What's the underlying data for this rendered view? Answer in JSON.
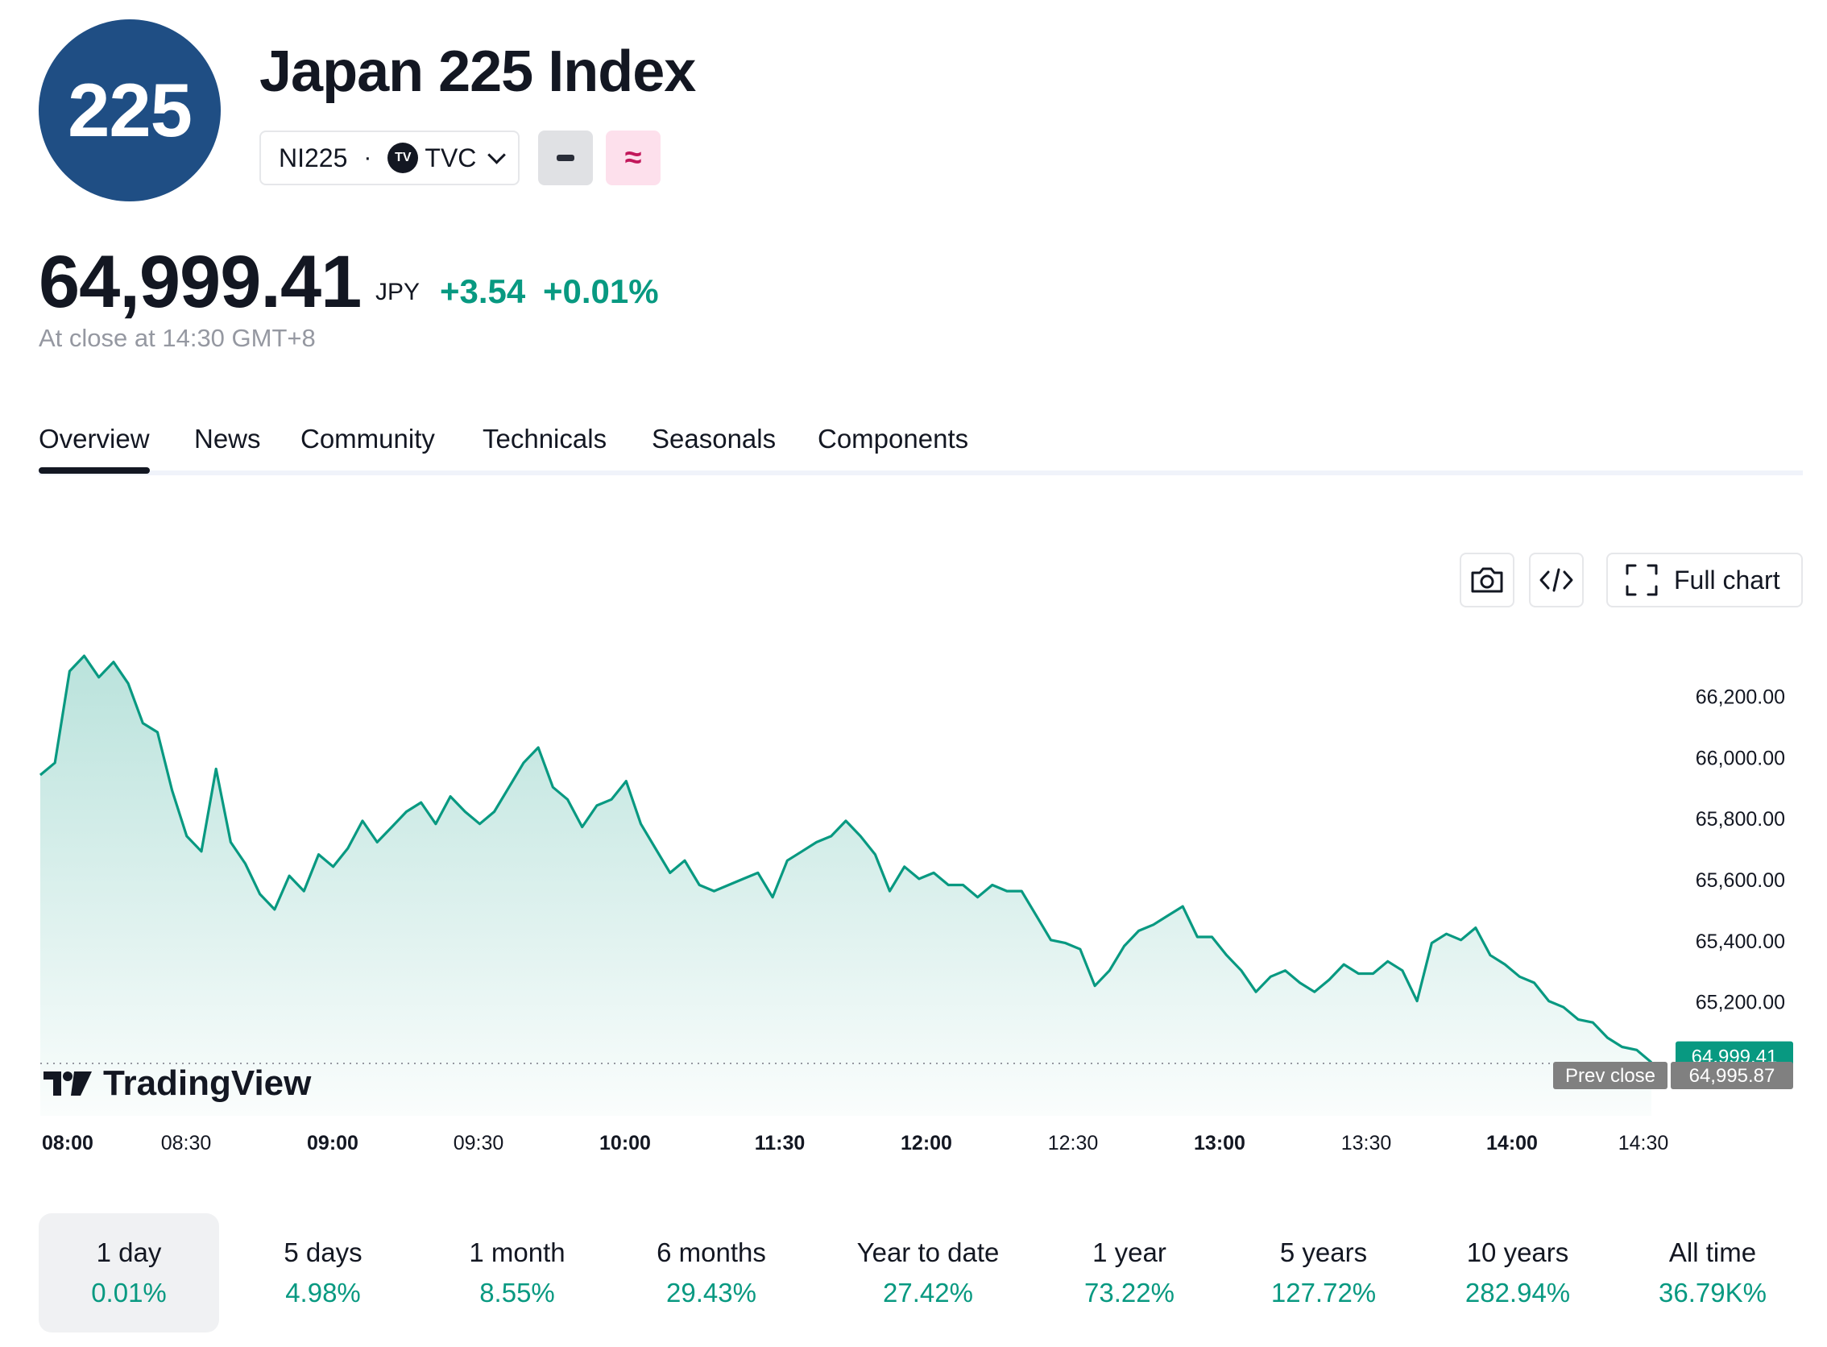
{
  "header": {
    "logo_text": "225",
    "title": "Japan 225 Index",
    "symbol": "NI225",
    "exchange_badge": "TV",
    "exchange": "TVC",
    "pink_button_symbol": "≈"
  },
  "quote": {
    "price": "64,999.41",
    "currency": "JPY",
    "change": "+3.54",
    "change_percent": "+0.01%",
    "close_note": "At close at 14:30 GMT+8",
    "up_color": "#089981"
  },
  "tabs": [
    "Overview",
    "News",
    "Community",
    "Technicals",
    "Seasonals",
    "Components"
  ],
  "toolbar": {
    "full_chart_label": "Full chart"
  },
  "branding": {
    "tradingview": "TradingView"
  },
  "chart_data": {
    "type": "area",
    "x_start": "08:00",
    "x_end": "14:30",
    "x_ticks": [
      {
        "label": "08:00",
        "bold": true
      },
      {
        "label": "08:30",
        "bold": false
      },
      {
        "label": "09:00",
        "bold": true
      },
      {
        "label": "09:30",
        "bold": false
      },
      {
        "label": "10:00",
        "bold": true
      },
      {
        "label": "11:30",
        "bold": true
      },
      {
        "label": "12:00",
        "bold": true
      },
      {
        "label": "12:30",
        "bold": false
      },
      {
        "label": "13:00",
        "bold": true
      },
      {
        "label": "13:30",
        "bold": false
      },
      {
        "label": "14:00",
        "bold": true
      },
      {
        "label": "14:30",
        "bold": false
      }
    ],
    "y_ticks": [
      "66,200.00",
      "66,000.00",
      "65,800.00",
      "65,600.00",
      "65,400.00",
      "65,200.00"
    ],
    "y_tick_values": [
      66200,
      66000,
      65800,
      65600,
      65400,
      65200
    ],
    "ylim": [
      64930,
      66420
    ],
    "values": [
      65940,
      65980,
      66280,
      66330,
      66260,
      66310,
      66240,
      66110,
      66080,
      65890,
      65740,
      65690,
      65960,
      65720,
      65650,
      65550,
      65500,
      65610,
      65560,
      65680,
      65640,
      65700,
      65790,
      65720,
      65770,
      65820,
      65850,
      65780,
      65870,
      65820,
      65780,
      65820,
      65900,
      65980,
      66030,
      65900,
      65860,
      65770,
      65840,
      65860,
      65920,
      65780,
      65700,
      65620,
      65660,
      65580,
      65560,
      65580,
      65600,
      65620,
      65540,
      65660,
      65690,
      65720,
      65740,
      65790,
      65740,
      65680,
      65560,
      65640,
      65600,
      65620,
      65580,
      65580,
      65540,
      65580,
      65560,
      65560,
      65480,
      65400,
      65390,
      65370,
      65250,
      65300,
      65380,
      65430,
      65450,
      65480,
      65510,
      65410,
      65410,
      65350,
      65300,
      65230,
      65280,
      65300,
      65260,
      65230,
      65270,
      65320,
      65290,
      65290,
      65330,
      65300,
      65200,
      65390,
      65420,
      65400,
      65440,
      65350,
      65320,
      65280,
      65260,
      65200,
      65180,
      65140,
      65130,
      65080,
      65050,
      65040,
      64999.41
    ],
    "prev_close": 64995.87,
    "prev_close_label": "Prev close",
    "prev_close_text": "64,995.87",
    "last_price_text": "64,999.41",
    "line_color": "#089981",
    "prev_close_color": "#808080"
  },
  "periods": [
    {
      "label": "1 day",
      "value": "0.01%"
    },
    {
      "label": "5 days",
      "value": "4.98%"
    },
    {
      "label": "1 month",
      "value": "8.55%"
    },
    {
      "label": "6 months",
      "value": "29.43%"
    },
    {
      "label": "Year to date",
      "value": "27.42%"
    },
    {
      "label": "1 year",
      "value": "73.22%"
    },
    {
      "label": "5 years",
      "value": "127.72%"
    },
    {
      "label": "10 years",
      "value": "282.94%"
    },
    {
      "label": "All time",
      "value": "36.79K%"
    }
  ]
}
